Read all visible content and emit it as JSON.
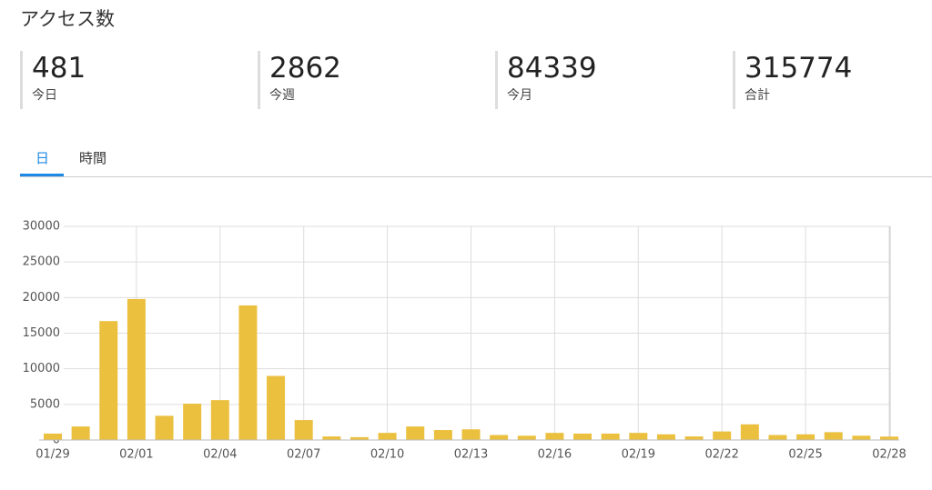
{
  "header": {
    "title": "アクセス数"
  },
  "stats": [
    {
      "value": "481",
      "label": "今日"
    },
    {
      "value": "2862",
      "label": "今週"
    },
    {
      "value": "84339",
      "label": "今月"
    },
    {
      "value": "315774",
      "label": "合計"
    }
  ],
  "tabs": [
    "日",
    "時間"
  ],
  "chart_data": {
    "type": "bar",
    "categories": [
      "01/29",
      null,
      null,
      "02/01",
      null,
      null,
      "02/04",
      null,
      null,
      "02/07",
      null,
      null,
      "02/10",
      null,
      null,
      "02/13",
      null,
      null,
      "02/16",
      null,
      null,
      "02/19",
      null,
      null,
      "02/22",
      null,
      null,
      "02/25",
      null,
      null,
      "02/28"
    ],
    "values": [
      900,
      1900,
      16700,
      19800,
      3400,
      5100,
      5600,
      18900,
      9000,
      2800,
      500,
      400,
      1000,
      1900,
      1400,
      1500,
      700,
      600,
      1000,
      900,
      900,
      1000,
      800,
      500,
      1200,
      2200,
      700,
      800,
      1100,
      600,
      481
    ],
    "color": "#ebc03f",
    "ylim": [
      0,
      30000
    ],
    "yticks": [
      0,
      5000,
      10000,
      15000,
      20000,
      25000,
      30000
    ],
    "grid": true
  }
}
